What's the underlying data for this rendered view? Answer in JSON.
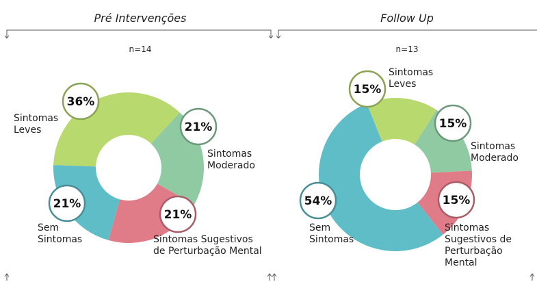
{
  "chart_data": [
    {
      "type": "pie",
      "title": "Pré Intervenções",
      "subtitle": "n=14",
      "categories": [
        "Sintomas Leves",
        "Sintomas Moderado",
        "Sintomas Sugestivos de Perturbação Mental",
        "Sem Sintomas"
      ],
      "values": [
        36,
        21,
        21,
        21
      ],
      "value_labels": [
        "36%",
        "21%",
        "21%",
        "21%"
      ],
      "colors": [
        "#b8d96d",
        "#8fcaa2",
        "#e07c88",
        "#5fbdc8"
      ]
    },
    {
      "type": "pie",
      "title": "Follow Up",
      "subtitle": "n=13",
      "categories": [
        "Sintomas Leves",
        "Sintomas Moderado",
        "Sintomas Sugestivos de Perturbação Mental",
        "Sem Sintomas"
      ],
      "values": [
        15,
        15,
        15,
        54
      ],
      "value_labels": [
        "15%",
        "15%",
        "15%",
        "54%"
      ],
      "colors": [
        "#b8d96d",
        "#8fcaa2",
        "#e07c88",
        "#5fbdc8"
      ]
    }
  ]
}
